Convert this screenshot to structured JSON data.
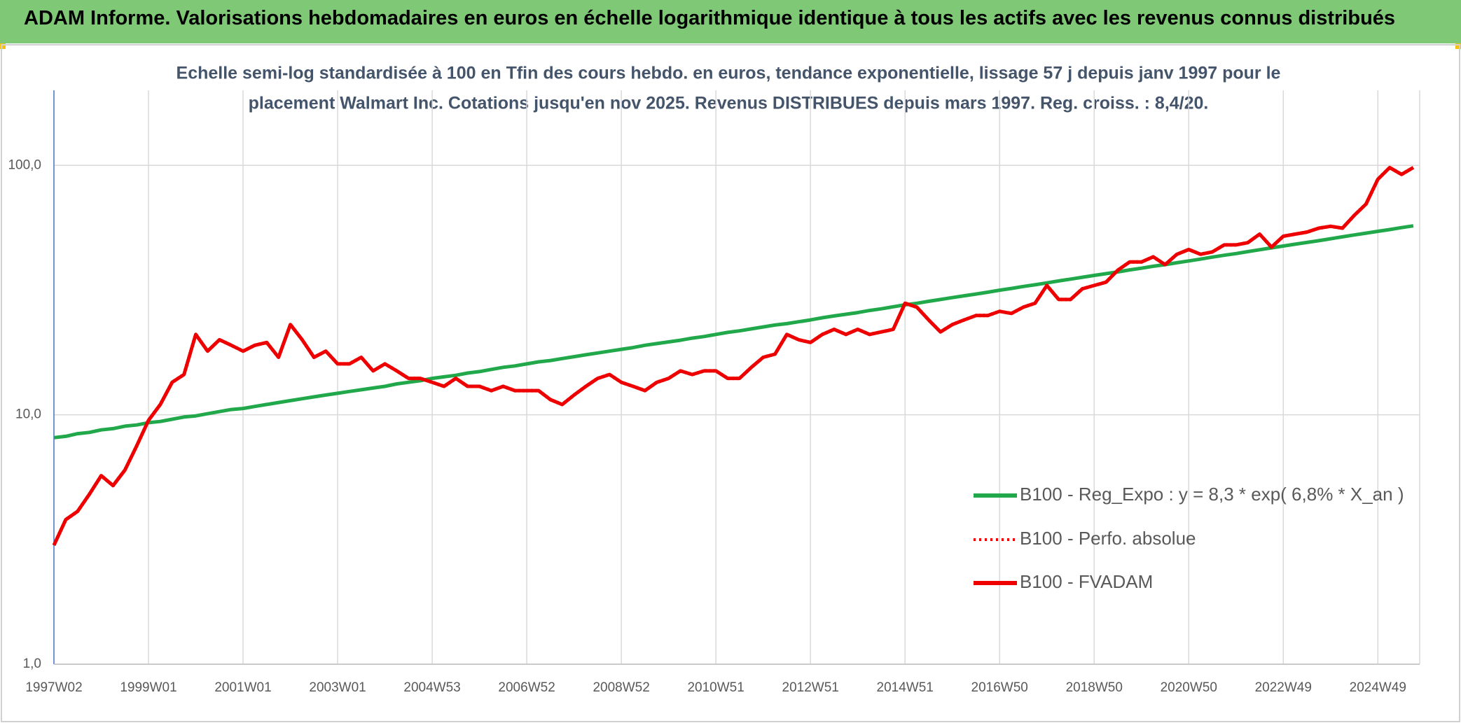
{
  "chart_data": {
    "type": "line",
    "title": "ADAM Informe. Valorisations hebdomadaires en euros en échelle logarithmique identique à tous les actifs avec les revenus connus distribués",
    "subtitle": [
      "Echelle semi-log standardisée à 100 en Tfin des cours hebdo. en euros, tendance exponentielle, lissage 57 j depuis janv 1997 pour le",
      "placement Walmart Inc. Cotations jusqu'en nov 2025. Revenus DISTRIBUES depuis mars 1997. Reg. croiss. : 8,4/20."
    ],
    "log_scale": true,
    "grid": true,
    "legend": "right",
    "ylim": [
      1,
      200
    ],
    "yticks": [
      {
        "value": 1,
        "label": "1,0"
      },
      {
        "value": 10,
        "label": "10,0"
      },
      {
        "value": 100,
        "label": "100,0"
      }
    ],
    "categories": [
      "1997W02",
      null,
      null,
      null,
      null,
      null,
      null,
      null,
      "1999W01",
      null,
      null,
      null,
      null,
      null,
      null,
      null,
      "2001W01",
      null,
      null,
      null,
      null,
      null,
      null,
      null,
      "2003W01",
      null,
      null,
      null,
      null,
      null,
      null,
      null,
      "2004W53",
      null,
      null,
      null,
      null,
      null,
      null,
      null,
      "2006W52",
      null,
      null,
      null,
      null,
      null,
      null,
      null,
      "2008W52",
      null,
      null,
      null,
      null,
      null,
      null,
      null,
      "2010W51",
      null,
      null,
      null,
      null,
      null,
      null,
      null,
      "2012W51",
      null,
      null,
      null,
      null,
      null,
      null,
      null,
      "2014W51",
      null,
      null,
      null,
      null,
      null,
      null,
      null,
      "2016W50",
      null,
      null,
      null,
      null,
      null,
      null,
      null,
      "2018W50",
      null,
      null,
      null,
      null,
      null,
      null,
      null,
      "2020W50",
      null,
      null,
      null,
      null,
      null,
      null,
      null,
      "2022W49",
      null,
      null,
      null,
      null,
      null,
      null,
      null,
      "2024W49",
      null,
      null,
      null
    ],
    "series": [
      {
        "name": "B100 - Reg_Expo : y = 8,3 * exp( 6,8% *  X_an )",
        "color": "#21a84a",
        "dash": "solid",
        "values": [
          8.1,
          8.2,
          8.4,
          8.5,
          8.7,
          8.8,
          9.0,
          9.1,
          9.3,
          9.4,
          9.6,
          9.8,
          9.9,
          10.1,
          10.3,
          10.5,
          10.6,
          10.8,
          11.0,
          11.2,
          11.4,
          11.6,
          11.8,
          12.0,
          12.2,
          12.4,
          12.6,
          12.8,
          13.0,
          13.3,
          13.5,
          13.7,
          14.0,
          14.2,
          14.4,
          14.7,
          14.9,
          15.2,
          15.5,
          15.7,
          16.0,
          16.3,
          16.5,
          16.8,
          17.1,
          17.4,
          17.7,
          18.0,
          18.3,
          18.6,
          19.0,
          19.3,
          19.6,
          19.9,
          20.3,
          20.6,
          21.0,
          21.4,
          21.7,
          22.1,
          22.5,
          22.9,
          23.2,
          23.6,
          24.0,
          24.5,
          24.9,
          25.3,
          25.7,
          26.2,
          26.6,
          27.1,
          27.6,
          28.0,
          28.5,
          29.0,
          29.5,
          30.0,
          30.5,
          31.0,
          31.6,
          32.1,
          32.7,
          33.2,
          33.8,
          34.4,
          35.0,
          35.6,
          36.2,
          36.8,
          37.4,
          38.1,
          38.7,
          39.4,
          40.0,
          40.7,
          41.4,
          42.1,
          42.9,
          43.6,
          44.3,
          45.1,
          45.9,
          46.7,
          47.5,
          48.3,
          49.1,
          49.9,
          50.8,
          51.7,
          52.6,
          53.5,
          54.4,
          55.3,
          56.3,
          57.2
        ]
      },
      {
        "name": "B100 - Perfo. absolue",
        "color": "#ee0000",
        "dash": "dotted",
        "values": [
          3.0,
          3.8,
          4.1,
          4.8,
          5.7,
          5.2,
          6.0,
          7.5,
          9.5,
          11,
          13.5,
          14.5,
          21,
          18,
          20,
          19,
          18,
          19,
          19.5,
          17,
          23,
          20,
          17,
          18,
          16,
          16,
          17,
          15,
          16,
          15,
          14,
          14,
          13.5,
          13,
          14,
          13,
          13,
          12.5,
          13,
          12.5,
          12.5,
          12.5,
          11.5,
          11,
          12,
          13,
          14,
          14.5,
          13.5,
          13,
          12.5,
          13.5,
          14,
          15,
          14.5,
          15,
          15,
          14,
          14,
          15.5,
          17,
          17.5,
          21,
          20,
          19.5,
          21,
          22,
          21,
          22,
          21,
          21.5,
          22,
          28,
          27,
          24,
          21.5,
          23,
          24,
          25,
          25,
          26,
          25.5,
          27,
          28,
          33,
          29,
          29,
          32,
          33,
          34,
          38,
          41,
          41,
          43,
          40,
          44,
          46,
          44,
          45,
          48,
          48,
          49,
          53,
          47,
          52,
          53,
          54,
          56,
          57,
          56,
          63,
          70,
          88,
          98,
          92,
          98
        ]
      },
      {
        "name": "B100 - FVADAM",
        "color": "#ee0000",
        "dash": "solid",
        "values": [
          3.0,
          3.8,
          4.1,
          4.8,
          5.7,
          5.2,
          6.0,
          7.5,
          9.5,
          11,
          13.5,
          14.5,
          21,
          18,
          20,
          19,
          18,
          19,
          19.5,
          17,
          23,
          20,
          17,
          18,
          16,
          16,
          17,
          15,
          16,
          15,
          14,
          14,
          13.5,
          13,
          14,
          13,
          13,
          12.5,
          13,
          12.5,
          12.5,
          12.5,
          11.5,
          11,
          12,
          13,
          14,
          14.5,
          13.5,
          13,
          12.5,
          13.5,
          14,
          15,
          14.5,
          15,
          15,
          14,
          14,
          15.5,
          17,
          17.5,
          21,
          20,
          19.5,
          21,
          22,
          21,
          22,
          21,
          21.5,
          22,
          28,
          27,
          24,
          21.5,
          23,
          24,
          25,
          25,
          26,
          25.5,
          27,
          28,
          33,
          29,
          29,
          32,
          33,
          34,
          38,
          41,
          41,
          43,
          40,
          44,
          46,
          44,
          45,
          48,
          48,
          49,
          53,
          47,
          52,
          53,
          54,
          56,
          57,
          56,
          63,
          70,
          88,
          98,
          92,
          98
        ]
      }
    ]
  }
}
